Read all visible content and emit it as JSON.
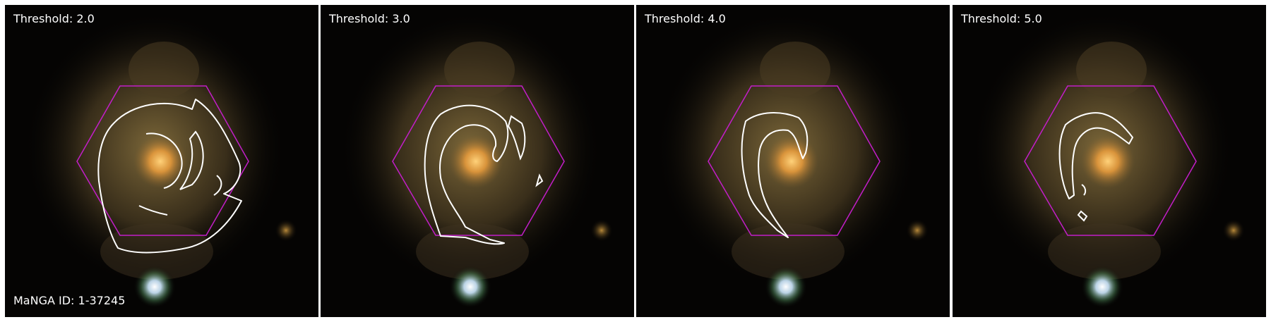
{
  "panels": [
    {
      "threshold_label": "Threshold: 2.0"
    },
    {
      "threshold_label": "Threshold: 3.0"
    },
    {
      "threshold_label": "Threshold: 4.0"
    },
    {
      "threshold_label": "Threshold: 5.0"
    }
  ],
  "manga_id_label": "MaNGA ID: 1-37245",
  "colors": {
    "hexagon": "#c21ec8",
    "contour": "#ffffff",
    "background": "#050403",
    "galaxy_core": "#f2a94a",
    "galaxy_disk": "#6a5b36",
    "star": "#dff4ff",
    "companion": "#a07830"
  }
}
